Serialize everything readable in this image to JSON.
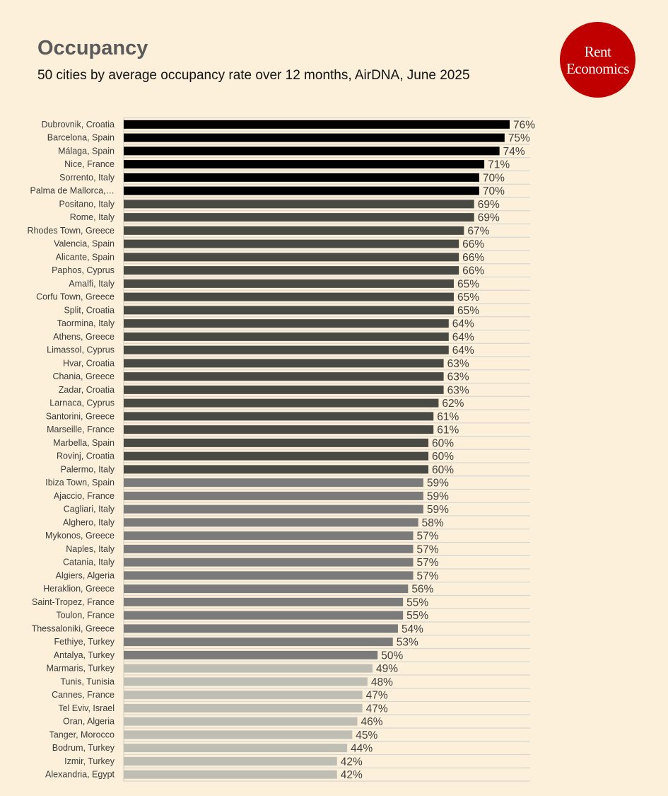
{
  "header": {
    "title": "Occupancy",
    "subtitle": "50 cities by average occupancy rate over 12 months, AirDNA, June 2025"
  },
  "logo": {
    "line1": "Rent",
    "line2": "Economics"
  },
  "colors": {
    "background": "#fcf0da",
    "tier_top": "#000000",
    "tier_high": "#4a4a44",
    "tier_mid": "#7b7b7b",
    "tier_low": "#bfbeb4",
    "logo": "#c00000"
  },
  "chart_data": {
    "type": "bar",
    "orientation": "horizontal",
    "categories": [
      "Dubrovnik, Croatia",
      "Barcelona, Spain",
      "Málaga, Spain",
      "Nice, France",
      "Sorrento, Italy",
      "Palma de Mallorca,…",
      "Positano, Italy",
      "Rome, Italy",
      "Rhodes Town, Greece",
      "Valencia, Spain",
      "Alicante, Spain",
      "Paphos, Cyprus",
      "Amalfi, Italy",
      "Corfu Town, Greece",
      "Split, Croatia",
      "Taormina, Italy",
      "Athens, Greece",
      "Limassol, Cyprus",
      "Hvar, Croatia",
      "Chania, Greece",
      "Zadar, Croatia",
      "Larnaca, Cyprus",
      "Santorini, Greece",
      "Marseille, France",
      "Marbella, Spain",
      "Rovinj, Croatia",
      "Palermo, Italy",
      "Ibiza Town, Spain",
      "Ajaccio, France",
      "Cagliari, Italy",
      "Alghero, Italy",
      "Mykonos, Greece",
      "Naples, Italy",
      "Catania, Italy",
      "Algiers, Algeria",
      "Heraklion, Greece",
      "Saint-Tropez, France",
      "Toulon, France",
      "Thessaloniki, Greece",
      "Fethiye, Turkey",
      "Antalya, Turkey",
      "Marmaris, Turkey",
      "Tunis, Tunisia",
      "Cannes, France",
      "Tel Eviv, Israel",
      "Oran, Algeria",
      "Tanger, Morocco",
      "Bodrum, Turkey",
      "Izmir, Turkey",
      "Alexandria, Egypt"
    ],
    "values": [
      76,
      75,
      74,
      71,
      70,
      70,
      69,
      69,
      67,
      66,
      66,
      66,
      65,
      65,
      65,
      64,
      64,
      64,
      63,
      63,
      63,
      62,
      61,
      61,
      60,
      60,
      60,
      59,
      59,
      59,
      58,
      57,
      57,
      57,
      57,
      56,
      55,
      55,
      54,
      53,
      50,
      49,
      48,
      47,
      47,
      46,
      45,
      44,
      42,
      42
    ],
    "value_labels": [
      "76%",
      "75%",
      "74%",
      "71%",
      "70%",
      "70%",
      "69%",
      "69%",
      "67%",
      "66%",
      "66%",
      "66%",
      "65%",
      "65%",
      "65%",
      "64%",
      "64%",
      "64%",
      "63%",
      "63%",
      "63%",
      "62%",
      "61%",
      "61%",
      "60%",
      "60%",
      "60%",
      "59%",
      "59%",
      "59%",
      "58%",
      "57%",
      "57%",
      "57%",
      "57%",
      "56%",
      "55%",
      "55%",
      "54%",
      "53%",
      "50%",
      "49%",
      "48%",
      "47%",
      "47%",
      "46%",
      "45%",
      "44%",
      "42%",
      "42%"
    ],
    "tiers": [
      "top",
      "top",
      "top",
      "top",
      "top",
      "top",
      "high",
      "high",
      "high",
      "high",
      "high",
      "high",
      "high",
      "high",
      "high",
      "high",
      "high",
      "high",
      "high",
      "high",
      "high",
      "high",
      "high",
      "high",
      "high",
      "high",
      "high",
      "mid",
      "mid",
      "mid",
      "mid",
      "mid",
      "mid",
      "mid",
      "mid",
      "mid",
      "mid",
      "mid",
      "mid",
      "mid",
      "mid",
      "low",
      "low",
      "low",
      "low",
      "low",
      "low",
      "low",
      "low",
      "low"
    ],
    "xlim": [
      0,
      80
    ],
    "grid": true
  }
}
